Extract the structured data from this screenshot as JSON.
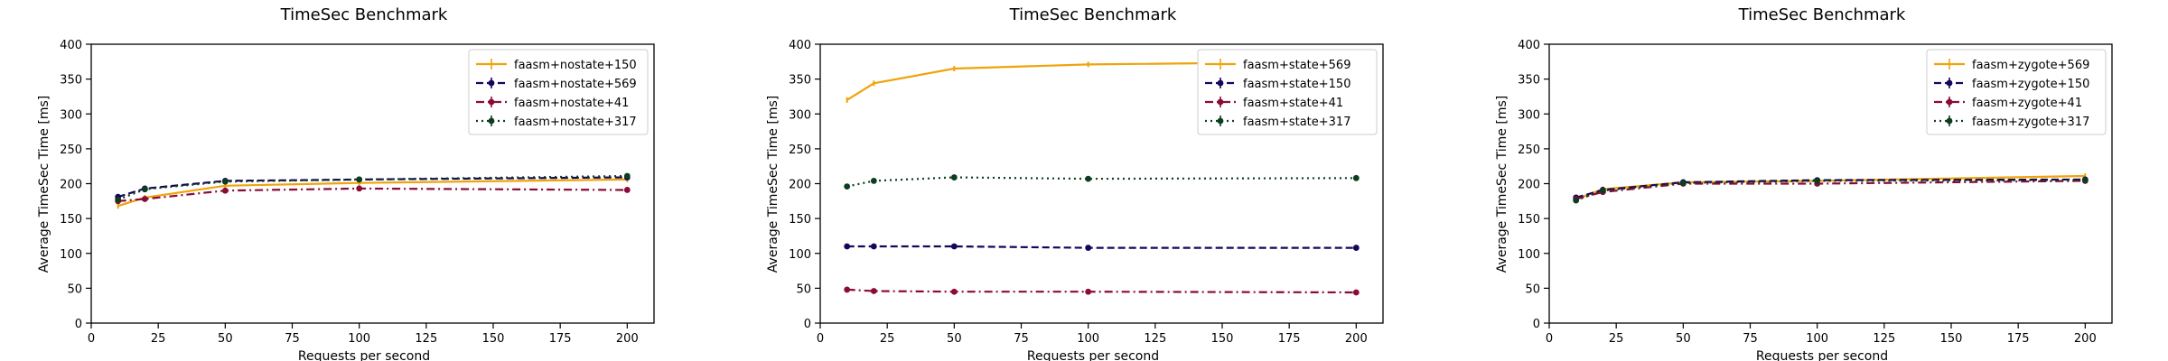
{
  "chart_data": [
    {
      "type": "line",
      "title": "TimeSec Benchmark",
      "xlabel": "Requests per second",
      "ylabel": "Average TimeSec Time [ms]",
      "xlim": [
        0,
        210
      ],
      "ylim": [
        0,
        400
      ],
      "xticks": [
        0,
        25,
        50,
        75,
        100,
        125,
        150,
        175,
        200
      ],
      "yticks": [
        0,
        50,
        100,
        150,
        200,
        250,
        300,
        350,
        400
      ],
      "grid": false,
      "legend_position": "top-right",
      "x": [
        10,
        20,
        50,
        100,
        200
      ],
      "series": [
        {
          "name": "faasm+nostate+150",
          "values": [
            168,
            180,
            197,
            201,
            206
          ],
          "color": "#f0a30a",
          "style": "solid",
          "marker": "line"
        },
        {
          "name": "faasm+nostate+569",
          "values": [
            181,
            193,
            204,
            206,
            209
          ],
          "color": "#17055a",
          "style": "dashed",
          "marker": "dot"
        },
        {
          "name": "faasm+nostate+41",
          "values": [
            175,
            178,
            190,
            193,
            191
          ],
          "color": "#8a0b36",
          "style": "dashdot",
          "marker": "dot"
        },
        {
          "name": "faasm+nostate+317",
          "values": [
            177,
            192,
            203,
            206,
            211
          ],
          "color": "#0b3d1f",
          "style": "dotted",
          "marker": "dot"
        }
      ]
    },
    {
      "type": "line",
      "title": "TimeSec Benchmark",
      "xlabel": "Requests per second",
      "ylabel": "Average TimeSec Time [ms]",
      "xlim": [
        0,
        210
      ],
      "ylim": [
        0,
        400
      ],
      "xticks": [
        0,
        25,
        50,
        75,
        100,
        125,
        150,
        175,
        200
      ],
      "yticks": [
        0,
        50,
        100,
        150,
        200,
        250,
        300,
        350,
        400
      ],
      "grid": false,
      "legend_position": "top-right",
      "x": [
        10,
        20,
        50,
        100,
        200
      ],
      "series": [
        {
          "name": "faasm+state+569",
          "values": [
            320,
            344,
            365,
            371,
            375
          ],
          "color": "#f0a30a",
          "style": "solid",
          "marker": "line"
        },
        {
          "name": "faasm+state+150",
          "values": [
            110,
            110,
            110,
            108,
            108
          ],
          "color": "#17055a",
          "style": "dashed",
          "marker": "dot"
        },
        {
          "name": "faasm+state+41",
          "values": [
            48,
            46,
            45,
            45,
            44
          ],
          "color": "#8a0b36",
          "style": "dashdot",
          "marker": "dot"
        },
        {
          "name": "faasm+state+317",
          "values": [
            196,
            204,
            209,
            207,
            208
          ],
          "color": "#0b3d1f",
          "style": "dotted",
          "marker": "dot"
        }
      ]
    },
    {
      "type": "line",
      "title": "TimeSec Benchmark",
      "xlabel": "Requests per second",
      "ylabel": "Average TimeSec Time [ms]",
      "xlim": [
        0,
        210
      ],
      "ylim": [
        0,
        400
      ],
      "xticks": [
        0,
        25,
        50,
        75,
        100,
        125,
        150,
        175,
        200
      ],
      "yticks": [
        0,
        50,
        100,
        150,
        200,
        250,
        300,
        350,
        400
      ],
      "grid": false,
      "legend_position": "top-right",
      "x": [
        10,
        20,
        50,
        100,
        200
      ],
      "series": [
        {
          "name": "faasm+zygote+569",
          "values": [
            178,
            192,
            202,
            204,
            211
          ],
          "color": "#f0a30a",
          "style": "solid",
          "marker": "line"
        },
        {
          "name": "faasm+zygote+150",
          "values": [
            180,
            191,
            202,
            205,
            206
          ],
          "color": "#17055a",
          "style": "dashed",
          "marker": "dot"
        },
        {
          "name": "faasm+zygote+41",
          "values": [
            178,
            188,
            200,
            200,
            204
          ],
          "color": "#8a0b36",
          "style": "dashdot",
          "marker": "dot"
        },
        {
          "name": "faasm+zygote+317",
          "values": [
            176,
            190,
            201,
            204,
            205
          ],
          "color": "#0b3d1f",
          "style": "dotted",
          "marker": "dot"
        }
      ]
    }
  ]
}
